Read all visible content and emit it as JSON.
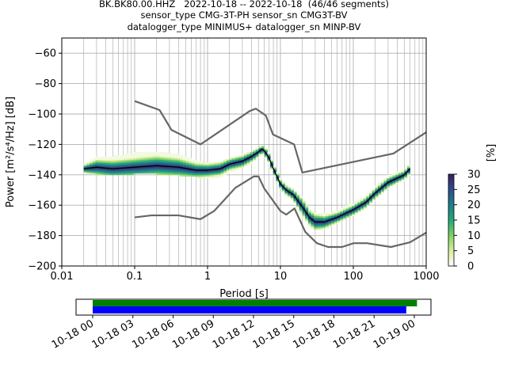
{
  "title_lines": [
    "BK.BK80.00.HHZ   2022-10-18 -- 2022-10-18  (46/46 segments)",
    "sensor_type CMG-3T-PH sensor_sn CMG3T-BV",
    "datalogger_type MINIMUS+ datalogger_sn MINP-BV"
  ],
  "colors": {
    "model_curves": "#666666",
    "mode_line": "#000000",
    "grid": "#b0b0b0",
    "timeline_green": "#008000",
    "timeline_blue": "#0000ff",
    "colormap": [
      "#ffffff",
      "#d8ee9a",
      "#7fd067",
      "#25a87a",
      "#1f7e8a",
      "#2f4d8a",
      "#3a1f5e"
    ]
  },
  "chart_data": [
    {
      "type": "heatmap",
      "title": "",
      "xlabel": "Period [s]",
      "ylabel": "Power [m²/s⁴/Hz] [dB]",
      "xscale": "log",
      "xlim": [
        0.01,
        1000
      ],
      "ylim": [
        -200,
        -50
      ],
      "xticks": [
        0.01,
        0.1,
        1,
        10,
        100,
        1000
      ],
      "xtick_labels": [
        "0.01",
        "0.1",
        "1",
        "10",
        "100",
        "1000"
      ],
      "yticks": [
        -200,
        -180,
        -160,
        -140,
        -120,
        -100,
        -80,
        -60
      ],
      "ytick_labels": [
        "−200",
        "−180",
        "−160",
        "−140",
        "−120",
        "−100",
        "−80",
        "−60"
      ],
      "grid": true,
      "colorbar": {
        "label": "[%]",
        "min": 0,
        "max": 30,
        "ticks": [
          0,
          5,
          10,
          15,
          20,
          25,
          30
        ],
        "tick_labels": [
          "0",
          "5",
          "10",
          "15",
          "20",
          "25",
          "30"
        ]
      },
      "series": [
        {
          "role": "high noise model",
          "x": [
            0.1,
            0.22,
            0.32,
            0.8,
            3.8,
            4.6,
            6.3,
            7.9,
            15.4,
            20,
            354.8,
            1000
          ],
          "y": [
            -91.5,
            -97.4,
            -110.5,
            -120,
            -98,
            -96.5,
            -101,
            -113.5,
            -120,
            -138.5,
            -126,
            -112
          ]
        },
        {
          "role": "low noise model",
          "x": [
            0.1,
            0.17,
            0.4,
            0.8,
            1.24,
            2.4,
            4.3,
            5,
            6,
            10,
            12,
            15.6,
            21.9,
            31.6,
            45,
            70,
            101,
            154,
            328,
            600,
            1000
          ],
          "y": [
            -168,
            -166.7,
            -166.7,
            -169.2,
            -163.7,
            -148.6,
            -141.1,
            -141.1,
            -149,
            -163.8,
            -166.2,
            -162.1,
            -177.5,
            -185,
            -187.5,
            -187.5,
            -185,
            -185,
            -187.5,
            -184.4,
            -178
          ]
        },
        {
          "role": "mode",
          "x": [
            0.02,
            0.03,
            0.05,
            0.1,
            0.2,
            0.4,
            0.7,
            1,
            1.5,
            2,
            3,
            4,
            5,
            5.5,
            6,
            7,
            8,
            10,
            12,
            15,
            20,
            25,
            30,
            40,
            60,
            100,
            150,
            200,
            300,
            500,
            600
          ],
          "y": [
            -136,
            -135,
            -136,
            -135,
            -134,
            -135,
            -137,
            -137,
            -136,
            -133,
            -131,
            -128,
            -125,
            -123,
            -124,
            -129,
            -136,
            -146,
            -150,
            -153,
            -161,
            -168,
            -171,
            -171,
            -168,
            -163,
            -158,
            -152,
            -145,
            -140,
            -136
          ]
        },
        {
          "role": "psd density band",
          "x": [
            0.02,
            0.03,
            0.05,
            0.1,
            0.2,
            0.4,
            0.7,
            1,
            1.5,
            2,
            3,
            4,
            5,
            5.5,
            6,
            7,
            8,
            10,
            12,
            15,
            20,
            25,
            30,
            40,
            60,
            100,
            150,
            200,
            300,
            500,
            600
          ],
          "lower": [
            -138,
            -139,
            -140,
            -139,
            -139,
            -140,
            -141,
            -142,
            -141,
            -138,
            -135,
            -132,
            -128,
            -126,
            -127,
            -132,
            -139,
            -149,
            -153,
            -157,
            -167,
            -173,
            -176,
            -175,
            -171,
            -166,
            -161,
            -155,
            -148,
            -143,
            -139
          ],
          "upper": [
            -133,
            -128,
            -128,
            -126,
            -125,
            -127,
            -131,
            -133,
            -132,
            -130,
            -127,
            -125,
            -122,
            -121,
            -121,
            -126,
            -133,
            -143,
            -147,
            -150,
            -156,
            -163,
            -165,
            -166,
            -164,
            -159,
            -154,
            -148,
            -141,
            -137,
            -133
          ]
        }
      ]
    },
    {
      "type": "bar",
      "title": "",
      "xlabel": "",
      "ylabel": "",
      "x_range": [
        "10-18 00",
        "10-19 00"
      ],
      "xtick_labels": [
        "10-18 00",
        "10-18 03",
        "10-18 06",
        "10-18 09",
        "10-18 12",
        "10-18 15",
        "10-18 18",
        "10-18 21",
        "10-19 00"
      ],
      "series": [
        {
          "role": "segments available",
          "start_hour": 0,
          "end_hour": 24.2
        },
        {
          "role": "segments used",
          "start_hour": 0,
          "end_hour": 23.4
        }
      ]
    }
  ]
}
